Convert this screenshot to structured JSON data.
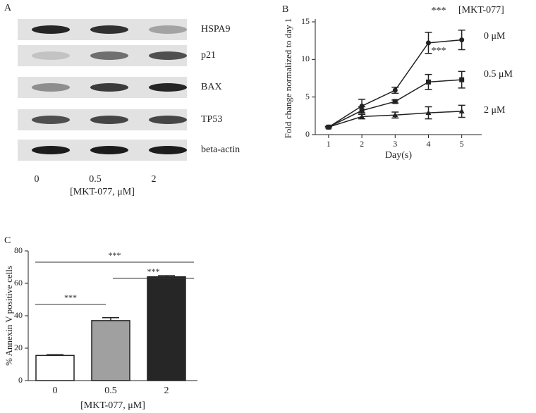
{
  "blot": {
    "panel_label": "A",
    "proteins": [
      "HSPA9",
      "p21",
      "BAX",
      "TP53",
      "beta-actin"
    ],
    "lanes": [
      "0",
      "0.5",
      "2"
    ],
    "xlabel": "[MKT-077, μM]"
  },
  "chart_data": [
    {
      "type": "line",
      "panel_label": "B",
      "xlabel": "Day(s)",
      "ylabel": "Fold change normalized to day 1",
      "legend_title": "[MKT-077]",
      "annotations": [
        "***",
        "***"
      ],
      "x": [
        1,
        2,
        3,
        4,
        5
      ],
      "xlim": [
        0.6,
        5.6
      ],
      "xticks": [
        1,
        2,
        3,
        4,
        5
      ],
      "ylim": [
        0,
        15
      ],
      "yticks": [
        0,
        5,
        10,
        15
      ],
      "series": [
        {
          "name": "0 μM",
          "color": "#222222",
          "marker": "circle",
          "values": [
            1,
            3.8,
            5.9,
            12.2,
            12.6
          ],
          "errors": [
            0.1,
            0.9,
            0.4,
            1.4,
            1.3
          ]
        },
        {
          "name": "0.5 μM",
          "color": "#222222",
          "marker": "square",
          "values": [
            1,
            3.2,
            4.4,
            7.0,
            7.3
          ],
          "errors": [
            0.1,
            0.5,
            0.2,
            1.0,
            1.1
          ]
        },
        {
          "name": "2 μM",
          "color": "#222222",
          "marker": "triangle",
          "values": [
            1,
            2.4,
            2.6,
            2.9,
            3.1
          ],
          "errors": [
            0.1,
            0.3,
            0.4,
            0.8,
            0.8
          ]
        }
      ]
    },
    {
      "type": "bar",
      "panel_label": "C",
      "xlabel": "[MKT-077, μM]",
      "ylabel": "% Annexin V positive cells",
      "categories": [
        "0",
        "0.5",
        "2"
      ],
      "values": [
        15.5,
        37,
        64
      ],
      "errors": [
        0.5,
        1.8,
        0.8
      ],
      "colors": [
        "#ffffff",
        "#a0a0a0",
        "#262626"
      ],
      "ylim": [
        0,
        80
      ],
      "yticks": [
        0,
        20,
        40,
        60,
        80
      ],
      "annotations": [
        "***",
        "***",
        "***"
      ]
    }
  ]
}
